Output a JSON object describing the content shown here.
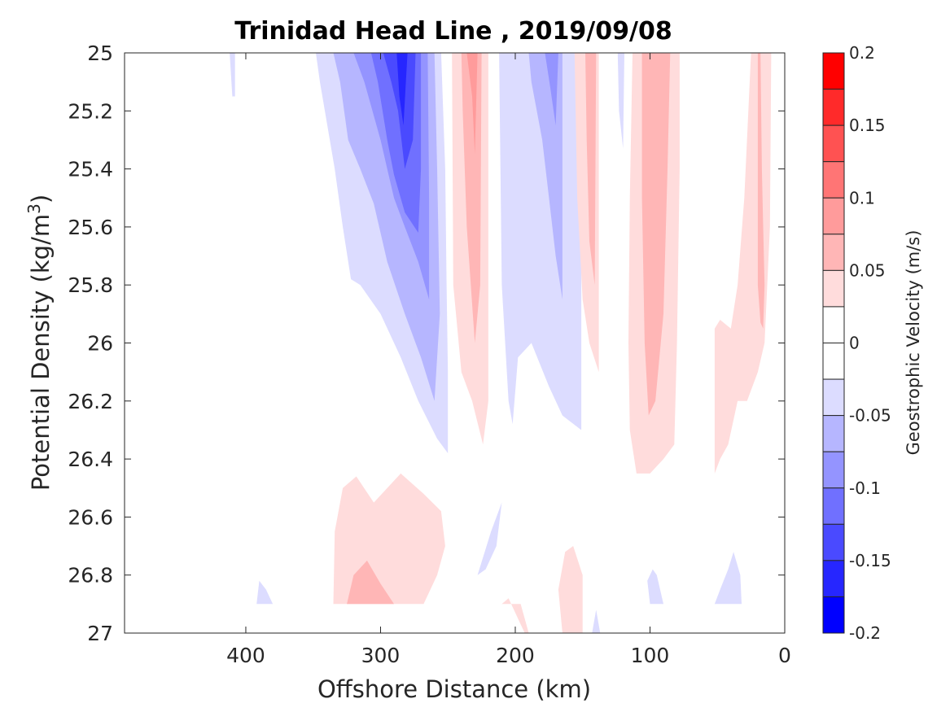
{
  "chart_data": {
    "type": "heatmap",
    "title": "Trinidad Head Line , 2019/09/08",
    "xlabel": "Offshore Distance (km)",
    "ylabel_main": "Potential Density (kg/m",
    "ylabel_sup": "3",
    "ylabel_close": ")",
    "xlim": [
      490,
      0
    ],
    "ylim": [
      25,
      27
    ],
    "x_reversed": true,
    "y_reversed": true,
    "xticks": [
      400,
      300,
      200,
      100,
      0
    ],
    "xtick_labels": [
      "400",
      "300",
      "200",
      "100",
      "0"
    ],
    "yticks": [
      25,
      25.2,
      25.4,
      25.6,
      25.8,
      26,
      26.2,
      26.4,
      26.6,
      26.8,
      27
    ],
    "ytick_labels": [
      "25",
      "25.2",
      "25.4",
      "25.6",
      "25.8",
      "26",
      "26.2",
      "26.4",
      "26.6",
      "26.8",
      "27"
    ],
    "colorbar": {
      "label": "Geostrophic Velocity (m/s)",
      "range": [
        -0.2,
        0.2
      ],
      "ticks": [
        0.2,
        0.15,
        0.1,
        0.05,
        0,
        -0.05,
        -0.1,
        -0.15,
        -0.2
      ],
      "tick_labels": [
        "0.2",
        "0.15",
        "0.1",
        "0.05",
        "0",
        "-0.05",
        "-0.1",
        "-0.15",
        "-0.2"
      ],
      "levels": [
        {
          "min": 0.175,
          "max": 0.2,
          "color": "#ff0000"
        },
        {
          "min": 0.15,
          "max": 0.175,
          "color": "#ff2a2a"
        },
        {
          "min": 0.125,
          "max": 0.15,
          "color": "#ff5252"
        },
        {
          "min": 0.1,
          "max": 0.125,
          "color": "#ff7575"
        },
        {
          "min": 0.075,
          "max": 0.1,
          "color": "#ff9b9b"
        },
        {
          "min": 0.05,
          "max": 0.075,
          "color": "#ffb6b6"
        },
        {
          "min": 0.025,
          "max": 0.05,
          "color": "#ffdcdc"
        },
        {
          "min": 0,
          "max": 0.025,
          "color": "#ffffff"
        },
        {
          "min": -0.025,
          "max": 0,
          "color": "#ffffff"
        },
        {
          "min": -0.05,
          "max": -0.025,
          "color": "#dcdcff"
        },
        {
          "min": -0.075,
          "max": -0.05,
          "color": "#b6b6ff"
        },
        {
          "min": -0.1,
          "max": -0.075,
          "color": "#9494ff"
        },
        {
          "min": -0.125,
          "max": -0.1,
          "color": "#7070ff"
        },
        {
          "min": -0.15,
          "max": -0.125,
          "color": "#4a4aff"
        },
        {
          "min": -0.175,
          "max": -0.15,
          "color": "#2626ff"
        },
        {
          "min": -0.2,
          "max": -0.175,
          "color": "#0000ff"
        }
      ]
    },
    "regions": [
      {
        "name": "b1-tiny",
        "value": -0.035,
        "points": [
          [
            412,
            25
          ],
          [
            408,
            25
          ],
          [
            408,
            25.15
          ],
          [
            410,
            25.15
          ]
        ]
      },
      {
        "name": "b1-outer",
        "value": -0.035,
        "points": [
          [
            348,
            25
          ],
          [
            255,
            25
          ],
          [
            252,
            25.4
          ],
          [
            251,
            25.8
          ],
          [
            250,
            26.1
          ],
          [
            250,
            26.38
          ],
          [
            258,
            26.33
          ],
          [
            272,
            26.2
          ],
          [
            285,
            26.05
          ],
          [
            300,
            25.9
          ],
          [
            315,
            25.8
          ],
          [
            322,
            25.78
          ],
          [
            328,
            25.6
          ],
          [
            334,
            25.4
          ],
          [
            345,
            25.1
          ]
        ]
      },
      {
        "name": "b1-l2",
        "value": -0.06,
        "points": [
          [
            335,
            25
          ],
          [
            260,
            25
          ],
          [
            258,
            25.4
          ],
          [
            256,
            25.9
          ],
          [
            260,
            26.2
          ],
          [
            270,
            26.05
          ],
          [
            282,
            25.9
          ],
          [
            295,
            25.72
          ],
          [
            305,
            25.52
          ],
          [
            315,
            25.4
          ],
          [
            324,
            25.3
          ],
          [
            330,
            25.1
          ]
        ]
      },
      {
        "name": "b1-l3",
        "value": -0.085,
        "points": [
          [
            320,
            25
          ],
          [
            265,
            25
          ],
          [
            264,
            25.5
          ],
          [
            264,
            25.85
          ],
          [
            272,
            25.72
          ],
          [
            282,
            25.6
          ],
          [
            290,
            25.5
          ],
          [
            295,
            25.4
          ],
          [
            300,
            25.3
          ],
          [
            312,
            25.1
          ]
        ]
      },
      {
        "name": "b1-l4",
        "value": -0.11,
        "points": [
          [
            307,
            25
          ],
          [
            270,
            25
          ],
          [
            270,
            25.4
          ],
          [
            272,
            25.62
          ],
          [
            282,
            25.55
          ],
          [
            290,
            25.42
          ],
          [
            295,
            25.3
          ],
          [
            302,
            25.1
          ]
        ]
      },
      {
        "name": "b1-l5",
        "value": -0.135,
        "points": [
          [
            298,
            25
          ],
          [
            274,
            25
          ],
          [
            276,
            25.3
          ],
          [
            282,
            25.4
          ],
          [
            287,
            25.2
          ],
          [
            292,
            25.1
          ]
        ]
      },
      {
        "name": "b1-l6",
        "value": -0.16,
        "points": [
          [
            288,
            25
          ],
          [
            280,
            25
          ],
          [
            283,
            25.25
          ],
          [
            286,
            25.15
          ]
        ]
      },
      {
        "name": "r1-outer",
        "value": 0.035,
        "points": [
          [
            247,
            25
          ],
          [
            220,
            25
          ],
          [
            220,
            26.2
          ],
          [
            224,
            26.35
          ],
          [
            232,
            26.2
          ],
          [
            240,
            26.1
          ],
          [
            246,
            25.8
          ]
        ]
      },
      {
        "name": "r1-mid",
        "value": 0.06,
        "points": [
          [
            240,
            25
          ],
          [
            225,
            25
          ],
          [
            226,
            25.8
          ],
          [
            230,
            26.0
          ],
          [
            236,
            25.6
          ],
          [
            239,
            25.2
          ]
        ]
      },
      {
        "name": "r1-inner",
        "value": 0.085,
        "points": [
          [
            236,
            25
          ],
          [
            228,
            25
          ],
          [
            230,
            25.35
          ],
          [
            232,
            25.15
          ]
        ]
      },
      {
        "name": "b2-outer",
        "value": -0.035,
        "points": [
          [
            212,
            25
          ],
          [
            151,
            25
          ],
          [
            151,
            26.3
          ],
          [
            165,
            26.25
          ],
          [
            175,
            26.15
          ],
          [
            188,
            26.0
          ],
          [
            198,
            26.05
          ],
          [
            202,
            26.28
          ],
          [
            205,
            26.2
          ],
          [
            210,
            25.8
          ]
        ]
      },
      {
        "name": "b2-mid",
        "value": -0.06,
        "points": [
          [
            190,
            25
          ],
          [
            165,
            25
          ],
          [
            165,
            25.85
          ],
          [
            170,
            25.7
          ],
          [
            175,
            25.5
          ],
          [
            180,
            25.3
          ],
          [
            188,
            25.1
          ]
        ]
      },
      {
        "name": "b2-inner",
        "value": -0.085,
        "points": [
          [
            178,
            25
          ],
          [
            168,
            25
          ],
          [
            170,
            25.25
          ],
          [
            174,
            25.12
          ]
        ]
      },
      {
        "name": "b2-tiny",
        "value": -0.035,
        "points": [
          [
            124,
            25
          ],
          [
            119,
            25
          ],
          [
            120,
            25.33
          ],
          [
            123,
            25.2
          ]
        ]
      },
      {
        "name": "r2-left",
        "value": 0.035,
        "points": [
          [
            156,
            25
          ],
          [
            138,
            25
          ],
          [
            138,
            26.1
          ],
          [
            145,
            26.0
          ],
          [
            150,
            25.85
          ],
          [
            154,
            25.5
          ]
        ]
      },
      {
        "name": "r2-left-mid",
        "value": 0.06,
        "points": [
          [
            148,
            25
          ],
          [
            140,
            25
          ],
          [
            141,
            25.8
          ],
          [
            145,
            25.65
          ],
          [
            147,
            25.3
          ]
        ]
      },
      {
        "name": "r2-outer",
        "value": 0.035,
        "points": [
          [
            113,
            25
          ],
          [
            78,
            25
          ],
          [
            78,
            25.4
          ],
          [
            80,
            26.0
          ],
          [
            82,
            26.35
          ],
          [
            90,
            26.4
          ],
          [
            100,
            26.45
          ],
          [
            110,
            26.45
          ],
          [
            115,
            26.3
          ],
          [
            116,
            26.0
          ],
          [
            115,
            25.5
          ]
        ]
      },
      {
        "name": "r2-mid",
        "value": 0.06,
        "points": [
          [
            106,
            25
          ],
          [
            85,
            25
          ],
          [
            87,
            25.4
          ],
          [
            90,
            25.9
          ],
          [
            96,
            26.2
          ],
          [
            101,
            26.25
          ],
          [
            104,
            26.0
          ],
          [
            106,
            25.5
          ]
        ]
      },
      {
        "name": "r3-outer",
        "value": 0.035,
        "points": [
          [
            25,
            25
          ],
          [
            10,
            25
          ],
          [
            11,
            25.6
          ],
          [
            15,
            26.0
          ],
          [
            20,
            26.1
          ],
          [
            28,
            26.2
          ],
          [
            35,
            26.2
          ],
          [
            42,
            26.35
          ],
          [
            48,
            26.4
          ],
          [
            52,
            26.45
          ],
          [
            52,
            25.95
          ],
          [
            48,
            25.92
          ],
          [
            40,
            25.95
          ],
          [
            35,
            25.8
          ],
          [
            30,
            25.5
          ],
          [
            27,
            25.2
          ]
        ]
      },
      {
        "name": "r3-mid",
        "value": 0.06,
        "points": [
          [
            20,
            25
          ],
          [
            18,
            25
          ],
          [
            17,
            25.4
          ],
          [
            16,
            25.6
          ],
          [
            15,
            25.8
          ],
          [
            16,
            25.95
          ],
          [
            18,
            25.93
          ],
          [
            20,
            25.8
          ],
          [
            20,
            25.4
          ]
        ]
      },
      {
        "name": "r4-outer",
        "value": 0.035,
        "points": [
          [
            335,
            26.9
          ],
          [
            268,
            26.9
          ],
          [
            258,
            26.8
          ],
          [
            252,
            26.7
          ],
          [
            255,
            26.58
          ],
          [
            268,
            26.52
          ],
          [
            285,
            26.45
          ],
          [
            295,
            26.5
          ],
          [
            305,
            26.55
          ],
          [
            318,
            26.46
          ],
          [
            328,
            26.5
          ],
          [
            334,
            26.65
          ]
        ]
      },
      {
        "name": "r4-inner",
        "value": 0.06,
        "points": [
          [
            325,
            26.9
          ],
          [
            290,
            26.9
          ],
          [
            300,
            26.83
          ],
          [
            310,
            26.75
          ],
          [
            320,
            26.8
          ]
        ]
      },
      {
        "name": "b3",
        "value": -0.035,
        "points": [
          [
            228,
            26.8
          ],
          [
            218,
            26.65
          ],
          [
            210,
            26.55
          ],
          [
            214,
            26.7
          ],
          [
            222,
            26.78
          ]
        ]
      },
      {
        "name": "r5",
        "value": 0.035,
        "points": [
          [
            165,
            27
          ],
          [
            150,
            27
          ],
          [
            150,
            26.8
          ],
          [
            157,
            26.7
          ],
          [
            163,
            26.72
          ],
          [
            168,
            26.85
          ]
        ]
      },
      {
        "name": "r6",
        "value": 0.035,
        "points": [
          [
            210,
            26.9
          ],
          [
            196,
            26.9
          ],
          [
            190,
            27
          ],
          [
            193,
            27
          ],
          [
            198,
            26.95
          ],
          [
            205,
            26.88
          ]
        ]
      },
      {
        "name": "b4",
        "value": -0.035,
        "points": [
          [
            100,
            26.9
          ],
          [
            90,
            26.9
          ],
          [
            95,
            26.8
          ],
          [
            98,
            26.78
          ],
          [
            102,
            26.82
          ]
        ]
      },
      {
        "name": "b5",
        "value": -0.035,
        "points": [
          [
            52,
            26.9
          ],
          [
            32,
            26.9
          ],
          [
            33,
            26.8
          ],
          [
            38,
            26.72
          ],
          [
            42,
            26.78
          ],
          [
            48,
            26.85
          ]
        ]
      },
      {
        "name": "b6",
        "value": -0.035,
        "points": [
          [
            392,
            26.9
          ],
          [
            380,
            26.9
          ],
          [
            385,
            26.85
          ],
          [
            390,
            26.82
          ]
        ]
      },
      {
        "name": "b7",
        "value": -0.035,
        "points": [
          [
            143,
            27
          ],
          [
            137,
            27
          ],
          [
            140,
            26.92
          ]
        ]
      }
    ]
  }
}
